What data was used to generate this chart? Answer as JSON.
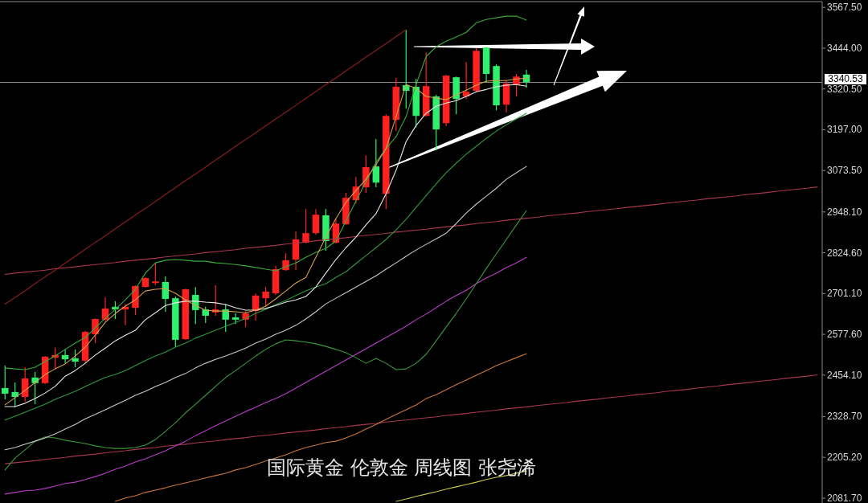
{
  "chart_data": {
    "type": "candlestick",
    "title": "国际黄金 伦敦金 周线图 张尧浠",
    "categories": [
      null,
      null,
      null,
      null,
      null,
      null,
      null,
      null,
      null,
      null,
      null,
      null,
      null,
      null,
      null,
      null,
      null,
      null,
      null,
      null,
      null,
      null,
      null,
      null,
      null,
      null,
      null,
      null,
      null,
      null,
      null,
      null,
      null,
      null,
      null,
      null,
      null,
      null,
      null,
      null,
      null,
      null,
      null,
      null,
      null,
      null,
      null,
      null,
      null,
      null,
      null,
      null,
      null,
      null,
      null,
      null,
      null,
      null,
      null,
      null,
      null,
      null,
      null,
      null,
      null,
      null,
      null,
      null,
      null,
      null,
      null,
      null,
      null,
      null,
      null,
      null,
      null,
      null,
      null,
      null,
      null,
      null
    ],
    "ohlc": [
      [
        2415,
        2483,
        2381,
        2398
      ],
      [
        2403,
        2432,
        2357,
        2388
      ],
      [
        2388,
        2478,
        2374,
        2444
      ],
      [
        2447,
        2464,
        2366,
        2430
      ],
      [
        2430,
        2512,
        2427,
        2510
      ],
      [
        2507,
        2537,
        2471,
        2515
      ],
      [
        2515,
        2532,
        2490,
        2502
      ],
      [
        2505,
        2532,
        2478,
        2495
      ],
      [
        2498,
        2588,
        2490,
        2585
      ],
      [
        2578,
        2626,
        2551,
        2624
      ],
      [
        2622,
        2690,
        2617,
        2656
      ],
      [
        2661,
        2678,
        2624,
        2653
      ],
      [
        2653,
        2670,
        2605,
        2661
      ],
      [
        2658,
        2726,
        2636,
        2724
      ],
      [
        2721,
        2751,
        2719,
        2748
      ],
      [
        2733,
        2794,
        2726,
        2738
      ],
      [
        2736,
        2753,
        2646,
        2685
      ],
      [
        2687,
        2692,
        2539,
        2561
      ],
      [
        2563,
        2716,
        2561,
        2714
      ],
      [
        2697,
        2721,
        2609,
        2651
      ],
      [
        2653,
        2661,
        2612,
        2634
      ],
      [
        2644,
        2726,
        2634,
        2653
      ],
      [
        2653,
        2670,
        2585,
        2622
      ],
      [
        2629,
        2641,
        2609,
        2622
      ],
      [
        2622,
        2648,
        2600,
        2641
      ],
      [
        2648,
        2702,
        2619,
        2695
      ],
      [
        2687,
        2721,
        2661,
        2707
      ],
      [
        2702,
        2785,
        2697,
        2775
      ],
      [
        2772,
        2823,
        2770,
        2802
      ],
      [
        2804,
        2889,
        2772,
        2865
      ],
      [
        2855,
        2957,
        2853,
        2884
      ],
      [
        2884,
        2957,
        2879,
        2940
      ],
      [
        2938,
        2957,
        2831,
        2860
      ],
      [
        2855,
        2928,
        2853,
        2913
      ],
      [
        2911,
        3006,
        2909,
        2991
      ],
      [
        2984,
        3054,
        2974,
        3025
      ],
      [
        3023,
        3120,
        3006,
        3084
      ],
      [
        3086,
        3169,
        3023,
        3037
      ],
      [
        3003,
        3244,
        2957,
        3239
      ],
      [
        3227,
        3354,
        3193,
        3327
      ],
      [
        3332,
        3499,
        3261,
        3315
      ],
      [
        3327,
        3351,
        3205,
        3239
      ],
      [
        3239,
        3431,
        3237,
        3329
      ],
      [
        3298,
        3303,
        3135,
        3198
      ],
      [
        3217,
        3363,
        3208,
        3361
      ],
      [
        3356,
        3358,
        3244,
        3290
      ],
      [
        3298,
        3402,
        3290,
        3312
      ],
      [
        3315,
        3444,
        3310,
        3436
      ],
      [
        3446,
        3448,
        3341,
        3366
      ],
      [
        3390,
        3395,
        3256,
        3271
      ],
      [
        3273,
        3346,
        3249,
        3337
      ],
      [
        3332,
        3366,
        3298,
        3358
      ],
      [
        3364,
        3378,
        3324,
        3341
      ],
      null,
      null,
      null,
      null,
      null,
      null,
      null,
      null,
      null,
      null,
      null,
      null,
      null,
      null,
      null,
      null,
      null,
      null,
      null,
      null,
      null,
      null,
      null,
      null,
      null,
      null,
      null,
      null,
      null
    ],
    "colors": [
      "#2ef06c",
      "#2ef06c",
      "#ff2020",
      "#2ef06c",
      "#ff2020",
      "#ff2020",
      "#2ef06c",
      "#2ef06c",
      "#ff2020",
      "#ff2020",
      "#ff2020",
      "#2ef06c",
      "#ff2020",
      "#ff2020",
      "#ff2020",
      "#ff2020",
      "#2ef06c",
      "#2ef06c",
      "#ff2020",
      "#2ef06c",
      "#2ef06c",
      "#ff2020",
      "#2ef06c",
      "#2ef06c",
      "#ff2020",
      "#ff2020",
      "#ff2020",
      "#ff2020",
      "#ff2020",
      "#ff2020",
      "#ff2020",
      "#ff2020",
      "#2ef06c",
      "#ff2020",
      "#ff2020",
      "#ff2020",
      "#ff2020",
      "#2ef06c",
      "#ff2020",
      "#ff2020",
      "#2ef06c",
      "#2ef06c",
      "#ff2020",
      "#2ef06c",
      "#ff2020",
      "#2ef06c",
      "#ff2020",
      "#ff2020",
      "#2ef06c",
      "#2ef06c",
      "#ff2020",
      "#ff2020",
      "#2ef06c",
      null,
      null,
      null,
      null,
      null,
      null,
      null,
      null,
      null,
      null,
      null,
      null,
      null,
      null,
      null,
      null,
      null,
      null,
      null,
      null,
      null,
      null,
      null,
      null,
      null,
      null,
      null,
      null,
      null
    ],
    "series": [
      {
        "type": "line",
        "color": "#8c1e1e",
        "values": [
          2669,
          2689,
          2710,
          2731,
          2752,
          2772,
          2793,
          2814,
          2835,
          2856,
          2876,
          2897,
          2918,
          2939,
          2959,
          2980,
          3001,
          3022,
          3043,
          3063,
          3084,
          3105,
          3126,
          3147,
          3167,
          3188,
          3209,
          3230,
          3250,
          3271,
          3292,
          3313,
          3334,
          3354,
          3375,
          3396,
          3417,
          3438,
          3458,
          3479,
          3500,
          null,
          null,
          null,
          null,
          null,
          null,
          null,
          null,
          null,
          null,
          null,
          null,
          null,
          null,
          null,
          null,
          null,
          null,
          null,
          null,
          null,
          null,
          null,
          null,
          null,
          null,
          null,
          null,
          null,
          null,
          null,
          null,
          null,
          null,
          null,
          null,
          null,
          null,
          null,
          null,
          null
        ]
      },
      {
        "type": "line",
        "color": "#a8384c",
        "values": [
          2759,
          2763,
          2766,
          2769,
          2772,
          2776,
          2779,
          2782,
          2786,
          2789,
          2792,
          2795,
          2799,
          2802,
          2805,
          2808,
          2812,
          2815,
          2818,
          2821,
          2825,
          2828,
          2831,
          2834,
          2838,
          2841,
          2844,
          2847,
          2851,
          2854,
          2857,
          2861,
          2864,
          2867,
          2870,
          2874,
          2877,
          2880,
          2883,
          2887,
          2890,
          2893,
          2896,
          2900,
          2903,
          2906,
          2909,
          2913,
          2916,
          2919,
          2923,
          2926,
          2929,
          2932,
          2936,
          2939,
          2942,
          2945,
          2949,
          2952,
          2955,
          2958,
          2962,
          2965,
          2968,
          2971,
          2975,
          2978,
          2981,
          2984,
          2988,
          2991,
          2994,
          2997,
          3001,
          3004,
          3007,
          3011,
          3014,
          3017,
          3020,
          3024
        ]
      },
      {
        "type": "line",
        "color": "#a8384c",
        "values": [
          2186,
          2189,
          2192,
          2195,
          2199,
          2202,
          2205,
          2209,
          2212,
          2215,
          2219,
          2222,
          2225,
          2229,
          2232,
          2235,
          2239,
          2242,
          2245,
          2249,
          2252,
          2255,
          2259,
          2262,
          2265,
          2269,
          2272,
          2275,
          2279,
          2282,
          2285,
          2288,
          2292,
          2295,
          2298,
          2302,
          2305,
          2308,
          2312,
          2315,
          2318,
          2322,
          2325,
          2328,
          2332,
          2335,
          2338,
          2342,
          2345,
          2348,
          2352,
          2355,
          2358,
          2362,
          2365,
          2368,
          2371,
          2375,
          2378,
          2381,
          2385,
          2388,
          2391,
          2395,
          2398,
          2401,
          2405,
          2408,
          2411,
          2415,
          2418,
          2421,
          2425,
          2428,
          2431,
          2435,
          2438,
          2441,
          2445,
          2448,
          2451,
          2455
        ]
      },
      {
        "type": "line",
        "color": "#c8c84a",
        "values": [
          null,
          null,
          null,
          null,
          null,
          null,
          null,
          null,
          null,
          null,
          null,
          null,
          null,
          null,
          null,
          null,
          null,
          null,
          null,
          null,
          null,
          null,
          null,
          null,
          null,
          null,
          null,
          null,
          null,
          null,
          null,
          null,
          null,
          null,
          null,
          null,
          null,
          null,
          null,
          2072,
          2079,
          2087,
          2094,
          2101,
          2109,
          2116,
          2123,
          2130,
          2138,
          2145,
          2150,
          2157,
          2164,
          null,
          null,
          null,
          null,
          null,
          null,
          null,
          null,
          null,
          null,
          null,
          null,
          null,
          null,
          null,
          null,
          null,
          null,
          null,
          null,
          null,
          null,
          null,
          null,
          null,
          null,
          null,
          null,
          null
        ]
      },
      {
        "type": "line",
        "color": "#c8783c",
        "values": [
          null,
          null,
          null,
          null,
          null,
          null,
          null,
          null,
          null,
          null,
          null,
          2072,
          2082,
          2089,
          2099,
          2106,
          2113,
          2121,
          2128,
          2135,
          2143,
          2150,
          2157,
          2167,
          2174,
          2184,
          2194,
          2203,
          2213,
          2225,
          2235,
          2242,
          2250,
          2254,
          2264,
          2276,
          2291,
          2305,
          2320,
          2335,
          2349,
          2364,
          2383,
          2395,
          2410,
          2425,
          2439,
          2454,
          2468,
          2483,
          2495,
          2507,
          2519,
          null,
          null,
          null,
          null,
          null,
          null,
          null,
          null,
          null,
          null,
          null,
          null,
          null,
          null,
          null,
          null,
          null,
          null,
          null,
          null,
          null,
          null,
          null,
          null,
          null,
          null,
          null,
          null,
          null
        ]
      },
      {
        "type": "line",
        "color": "#b83cc8",
        "values": [
          2094,
          2099,
          2104,
          2106,
          2111,
          2118,
          2126,
          2130,
          2138,
          2147,
          2157,
          2169,
          2179,
          2191,
          2201,
          2213,
          2225,
          2240,
          2254,
          2271,
          2286,
          2301,
          2315,
          2330,
          2344,
          2357,
          2371,
          2383,
          2398,
          2415,
          2432,
          2449,
          2466,
          2483,
          2500,
          2517,
          2534,
          2551,
          2568,
          2585,
          2602,
          2622,
          2639,
          2658,
          2678,
          2695,
          2711,
          2731,
          2748,
          2763,
          2780,
          2794,
          2811,
          null,
          null,
          null,
          null,
          null,
          null,
          null,
          null,
          null,
          null,
          null,
          null,
          null,
          null,
          null,
          null,
          null,
          null,
          null,
          null,
          null,
          null,
          null,
          null,
          null,
          null,
          null,
          null,
          null
        ]
      },
      {
        "type": "line",
        "color": "#3a9a3a",
        "values": [
          2167,
          2203,
          2228,
          2254,
          2267,
          2264,
          2257,
          2252,
          2247,
          2240,
          2235,
          2232,
          2232,
          2235,
          2242,
          2259,
          2284,
          2310,
          2340,
          2366,
          2393,
          2420,
          2447,
          2468,
          2490,
          2512,
          2532,
          2549,
          2561,
          2558,
          2554,
          2549,
          2541,
          2532,
          2522,
          2507,
          2490,
          2505,
          2490,
          2471,
          2473,
          2490,
          2517,
          2558,
          2600,
          2641,
          2685,
          2731,
          2777,
          2821,
          2865,
          2909,
          2952,
          null,
          null,
          null,
          null,
          null,
          null,
          null,
          null,
          null,
          null,
          null,
          null,
          null,
          null,
          null,
          null,
          null,
          null,
          null,
          null,
          null,
          null,
          null,
          null,
          null,
          null,
          null,
          null,
          null
        ]
      },
      {
        "type": "line",
        "color": "#c8c8c8",
        "values": [
          2228,
          2235,
          2245,
          2254,
          2264,
          2276,
          2291,
          2305,
          2322,
          2335,
          2349,
          2364,
          2378,
          2393,
          2405,
          2420,
          2432,
          2447,
          2459,
          2476,
          2490,
          2502,
          2512,
          2524,
          2536,
          2551,
          2563,
          2578,
          2590,
          2605,
          2624,
          2646,
          2670,
          2687,
          2704,
          2721,
          2738,
          2755,
          2775,
          2794,
          2814,
          2833,
          2850,
          2867,
          2884,
          2913,
          2945,
          2972,
          2996,
          3020,
          3047,
          3067,
          3086,
          null,
          null,
          null,
          null,
          null,
          null,
          null,
          null,
          null,
          null,
          null,
          null,
          null,
          null,
          null,
          null,
          null,
          null,
          null,
          null,
          null,
          null,
          null,
          null,
          null,
          null,
          null,
          null,
          null
        ]
      },
      {
        "type": "line",
        "color": "#2f9a3a",
        "values": [
          2318,
          2330,
          2342,
          2354,
          2366,
          2381,
          2393,
          2405,
          2420,
          2434,
          2447,
          2456,
          2468,
          2483,
          2498,
          2512,
          2524,
          2539,
          2551,
          2566,
          2578,
          2590,
          2602,
          2614,
          2626,
          2641,
          2653,
          2668,
          2680,
          2695,
          2709,
          2721,
          2731,
          2750,
          2767,
          2792,
          2816,
          2840,
          2865,
          2894,
          2926,
          2962,
          2998,
          3033,
          3067,
          3096,
          3123,
          3147,
          3171,
          3193,
          3212,
          3230,
          3247,
          null,
          null,
          null,
          null,
          null,
          null,
          null,
          null,
          null,
          null,
          null,
          null,
          null,
          null,
          null,
          null,
          null,
          null,
          null,
          null,
          null,
          null,
          null,
          null,
          null,
          null,
          null,
          null,
          null
        ]
      },
      {
        "type": "line",
        "color": "#3aaa3a",
        "values": [
          2476,
          2473,
          2471,
          2478,
          2495,
          2512,
          2532,
          2551,
          2568,
          2597,
          2626,
          2653,
          2682,
          2714,
          2763,
          2794,
          2802,
          2804,
          2802,
          2799,
          2799,
          2794,
          2792,
          2789,
          2785,
          2780,
          2775,
          2770,
          2782,
          2794,
          2811,
          2826,
          2838,
          2860,
          2921,
          2981,
          3040,
          3098,
          3140,
          3176,
          3237,
          3334,
          3419,
          3448,
          3465,
          3478,
          3492,
          3521,
          3531,
          3536,
          3541,
          3541,
          3529,
          null,
          null,
          null,
          null,
          null,
          null,
          null,
          null,
          null,
          null,
          null,
          null,
          null,
          null,
          null,
          null,
          null,
          null,
          null,
          null,
          null,
          null,
          null,
          null,
          null,
          null,
          null,
          null,
          null
        ]
      },
      {
        "type": "line",
        "color": "#e8e8e8",
        "values": [
          2359,
          2359,
          2369,
          2383,
          2400,
          2420,
          2451,
          2468,
          2490,
          2515,
          2536,
          2558,
          2575,
          2590,
          2622,
          2643,
          2665,
          2673,
          2678,
          2678,
          2675,
          2673,
          2668,
          2658,
          2651,
          2651,
          2656,
          2665,
          2675,
          2682,
          2692,
          2721,
          2763,
          2804,
          2840,
          2872,
          2909,
          2943,
          3003,
          3074,
          3161,
          3210,
          3247,
          3268,
          3278,
          3285,
          3298,
          3312,
          3319,
          3327,
          3332,
          3334,
          3329,
          null,
          null,
          null,
          null,
          null,
          null,
          null,
          null,
          null,
          null,
          null,
          null,
          null,
          null,
          null,
          null,
          null,
          null,
          null,
          null,
          null,
          null,
          null,
          null,
          null,
          null,
          null,
          null,
          null
        ]
      },
      {
        "type": "line",
        "color": "#d4a04a",
        "values": [
          2364,
          2386,
          2408,
          2432,
          2456,
          2473,
          2488,
          2512,
          2539,
          2575,
          2614,
          2641,
          2663,
          2682,
          2709,
          2714,
          2716,
          2702,
          2682,
          2665,
          2651,
          2648,
          2648,
          2646,
          2643,
          2651,
          2663,
          2685,
          2709,
          2733,
          2750,
          2811,
          2872,
          2928,
          2977,
          3013,
          3047,
          3091,
          3140,
          3237,
          3334,
          3322,
          3298,
          3293,
          3288,
          3302,
          3317,
          3332,
          3344,
          3346,
          3346,
          3351,
          3353,
          null,
          null,
          null,
          null,
          null,
          null,
          null,
          null,
          null,
          null,
          null,
          null,
          null,
          null,
          null,
          null,
          null,
          null,
          null,
          null,
          null,
          null,
          null,
          null,
          null,
          null,
          null,
          null,
          null
        ]
      }
    ],
    "ylim": [
      2067,
      3585
    ],
    "yticks": [
      {
        "value": 3567.5,
        "label": "3567.50"
      },
      {
        "value": 3444,
        "label": "3444.00"
      },
      {
        "value": 3320.5,
        "label": "3320.50"
      },
      {
        "value": 3197,
        "label": "3197.00"
      },
      {
        "value": 3073.5,
        "label": "3073.50"
      },
      {
        "value": 2948.1,
        "label": "2948.10"
      },
      {
        "value": 2824.6,
        "label": "2824.60"
      },
      {
        "value": 2701.1,
        "label": "2701.10"
      },
      {
        "value": 2577.6,
        "label": "2577.60"
      },
      {
        "value": 2454.1,
        "label": "2454.10"
      },
      {
        "value": 2328.7,
        "label": "2328.70"
      },
      {
        "value": 2205.2,
        "label": "2205.20"
      },
      {
        "value": 2081.7,
        "label": "2081.70"
      }
    ],
    "tick_labels": "y",
    "ref_lines": [
      {
        "axis": "y",
        "value": 3340.53,
        "label": "3340.53",
        "color": "#8c8c8c"
      }
    ]
  }
}
